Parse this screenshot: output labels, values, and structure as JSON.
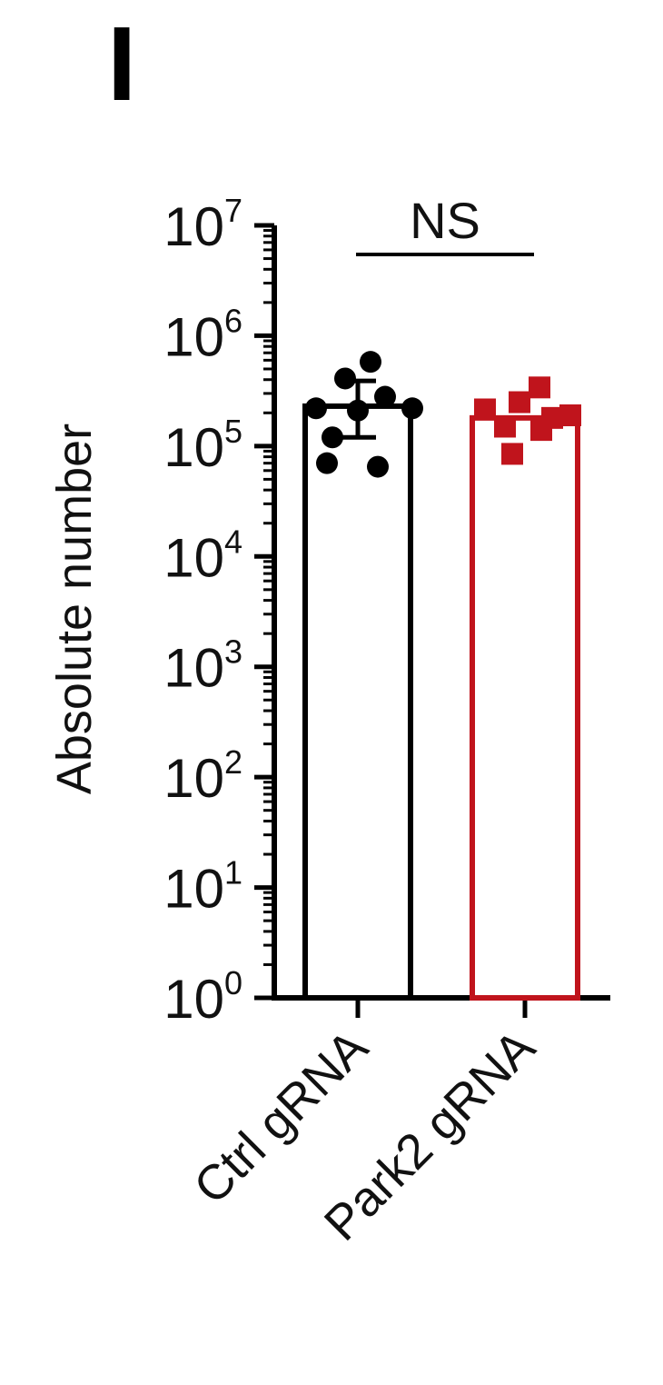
{
  "panel_label": "I",
  "chart_data": {
    "type": "bar",
    "yscale": "log",
    "ylim": [
      1,
      10000000
    ],
    "ylabel": "Absolute number",
    "xlabel": "",
    "yticks": [
      {
        "base": "10",
        "exp": "0",
        "value": 1
      },
      {
        "base": "10",
        "exp": "1",
        "value": 10
      },
      {
        "base": "10",
        "exp": "2",
        "value": 100
      },
      {
        "base": "10",
        "exp": "3",
        "value": 1000
      },
      {
        "base": "10",
        "exp": "4",
        "value": 10000
      },
      {
        "base": "10",
        "exp": "5",
        "value": 100000
      },
      {
        "base": "10",
        "exp": "6",
        "value": 1000000
      },
      {
        "base": "10",
        "exp": "7",
        "value": 10000000
      }
    ],
    "categories": [
      "Ctrl gRNA",
      "Park2 gRNA"
    ],
    "series": [
      {
        "category": "Ctrl gRNA",
        "color": "#000000",
        "marker": "circle",
        "mean": 230000,
        "error_low": 120000,
        "error_high": 390000,
        "points": [
          580000,
          410000,
          280000,
          220000,
          220000,
          210000,
          120000,
          70000,
          65000
        ]
      },
      {
        "category": "Park2 gRNA",
        "color": "#c0141c",
        "marker": "square",
        "mean": 180000,
        "points": [
          340000,
          250000,
          215000,
          190000,
          180000,
          150000,
          140000,
          85000
        ]
      }
    ],
    "significance": {
      "label": "NS",
      "between": [
        "Ctrl gRNA",
        "Park2 gRNA"
      ]
    }
  }
}
